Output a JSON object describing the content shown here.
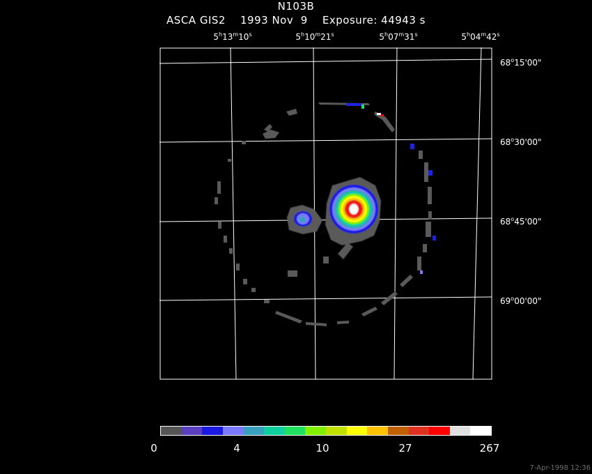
{
  "header": {
    "title": "N103B",
    "subtitle": "ASCA GIS2    1993 Nov  9    Exposure: 44943 s"
  },
  "ra_axis": [
    {
      "h": "5",
      "m": "13",
      "s": "10"
    },
    {
      "h": "5",
      "m": "10",
      "s": "21"
    },
    {
      "h": "5",
      "m": "07",
      "s": "31"
    },
    {
      "h": "5",
      "m": "04",
      "s": "42"
    }
  ],
  "dec_axis": [
    {
      "d": "68",
      "rest": "15'00\""
    },
    {
      "d": "68",
      "rest": "30'00\""
    },
    {
      "d": "68",
      "rest": "45'00\""
    },
    {
      "d": "69",
      "rest": "00'00\""
    }
  ],
  "colorbar": {
    "colors": [
      "#555555",
      "#5a3fc0",
      "#1a1ae0",
      "#7a7aff",
      "#3aa0c0",
      "#10d0a0",
      "#20e060",
      "#80f000",
      "#c0e000",
      "#ffff00",
      "#ffc000",
      "#c06000",
      "#e03020",
      "#ff0000",
      "#e0e0e0",
      "#ffffff"
    ],
    "ticks": [
      "0",
      "4",
      "10",
      "27",
      "267"
    ]
  },
  "footer": {
    "timestamp": "7-Apr-1998 12:36"
  }
}
